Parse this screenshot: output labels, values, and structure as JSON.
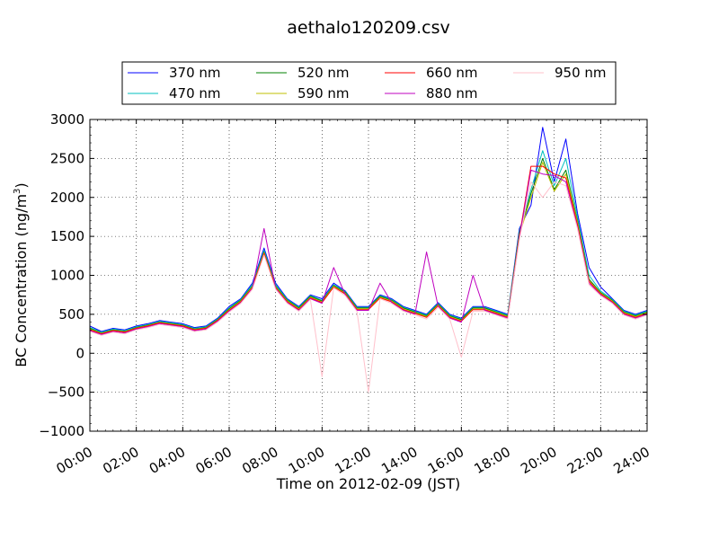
{
  "chart_data": {
    "type": "line",
    "title": "aethalo120209.csv",
    "xlabel": "Time on 2012-02-09 (JST)",
    "ylabel_main": "BC Concentration (ng/m",
    "ylabel_sup": "3",
    "ylabel_end": ")",
    "ylim": [
      -1000,
      3000
    ],
    "xlim_hours": [
      0,
      24
    ],
    "grid": true,
    "legend_position": "top-center",
    "yticks": [
      -1000,
      -500,
      0,
      500,
      1000,
      1500,
      2000,
      2500,
      3000
    ],
    "ytick_labels": [
      "−1000",
      "−500",
      "0",
      "500",
      "1000",
      "1500",
      "2000",
      "2500",
      "3000"
    ],
    "xtick_labels": [
      "00:00",
      "02:00",
      "04:00",
      "06:00",
      "08:00",
      "10:00",
      "12:00",
      "14:00",
      "16:00",
      "18:00",
      "20:00",
      "22:00",
      "24:00"
    ],
    "x_hours": [
      0,
      0.5,
      1,
      1.5,
      2,
      2.5,
      3,
      3.5,
      4,
      4.5,
      5,
      5.5,
      6,
      6.5,
      7,
      7.5,
      8,
      8.5,
      9,
      9.5,
      10,
      10.5,
      11,
      11.5,
      12,
      12.5,
      13,
      13.5,
      14,
      14.5,
      15,
      15.5,
      16,
      16.5,
      17,
      17.5,
      18,
      18.5,
      19,
      19.5,
      20,
      20.5,
      21,
      21.5,
      22,
      22.5,
      23,
      23.5,
      24
    ],
    "series": [
      {
        "name": "370 nm",
        "color": "#0000ff",
        "values": [
          350,
          280,
          320,
          300,
          350,
          380,
          420,
          400,
          380,
          330,
          350,
          450,
          600,
          700,
          900,
          1350,
          900,
          700,
          600,
          750,
          700,
          900,
          800,
          600,
          600,
          750,
          700,
          600,
          550,
          500,
          650,
          500,
          450,
          600,
          600,
          550,
          500,
          1600,
          1900,
          2900,
          2200,
          2750,
          1800,
          1100,
          850,
          700,
          550,
          500,
          550
        ]
      },
      {
        "name": "470 nm",
        "color": "#00bfbf",
        "values": [
          330,
          270,
          310,
          290,
          340,
          370,
          410,
          390,
          370,
          320,
          340,
          440,
          580,
          690,
          880,
          1320,
          880,
          690,
          590,
          740,
          680,
          880,
          790,
          590,
          590,
          740,
          690,
          590,
          540,
          490,
          640,
          490,
          440,
          590,
          590,
          540,
          490,
          1560,
          2100,
          2600,
          2150,
          2500,
          1750,
          1000,
          800,
          690,
          540,
          490,
          540
        ]
      },
      {
        "name": "520 nm",
        "color": "#008000",
        "values": [
          320,
          260,
          300,
          280,
          330,
          360,
          400,
          380,
          360,
          310,
          330,
          430,
          570,
          680,
          860,
          1300,
          860,
          680,
          580,
          730,
          670,
          870,
          780,
          580,
          580,
          730,
          680,
          580,
          530,
          480,
          630,
          480,
          430,
          580,
          580,
          530,
          480,
          1540,
          2050,
          2500,
          2100,
          2350,
          1700,
          950,
          780,
          680,
          530,
          480,
          530
        ]
      },
      {
        "name": "590 nm",
        "color": "#bfbf00",
        "values": [
          310,
          255,
          295,
          275,
          325,
          355,
          395,
          375,
          355,
          305,
          325,
          425,
          560,
          670,
          850,
          1290,
          850,
          670,
          570,
          720,
          660,
          860,
          770,
          570,
          570,
          720,
          670,
          570,
          520,
          470,
          620,
          470,
          420,
          570,
          570,
          520,
          470,
          1520,
          2000,
          2450,
          2080,
          2300,
          1680,
          930,
          770,
          670,
          520,
          470,
          520
        ]
      },
      {
        "name": "660 nm",
        "color": "#ff0000",
        "values": [
          300,
          250,
          290,
          270,
          320,
          350,
          390,
          370,
          350,
          300,
          320,
          420,
          550,
          660,
          840,
          1280,
          840,
          660,
          560,
          710,
          650,
          850,
          760,
          560,
          560,
          710,
          660,
          560,
          510,
          460,
          610,
          460,
          410,
          560,
          560,
          510,
          460,
          1500,
          2400,
          2400,
          2300,
          2250,
          1650,
          920,
          760,
          660,
          510,
          460,
          510
        ]
      },
      {
        "name": "880 nm",
        "color": "#bf00bf",
        "values": [
          290,
          240,
          280,
          260,
          310,
          340,
          380,
          360,
          340,
          290,
          310,
          410,
          540,
          650,
          830,
          1600,
          830,
          650,
          550,
          700,
          640,
          1100,
          750,
          550,
          550,
          900,
          650,
          550,
          500,
          1300,
          600,
          450,
          400,
          1000,
          550,
          500,
          450,
          1480,
          2350,
          2300,
          2280,
          2200,
          1620,
          900,
          750,
          650,
          500,
          450,
          500
        ]
      },
      {
        "name": "950 nm",
        "color": "#ffc0cb",
        "values": [
          280,
          230,
          270,
          250,
          300,
          330,
          370,
          350,
          330,
          280,
          300,
          400,
          530,
          640,
          820,
          1260,
          820,
          640,
          540,
          690,
          -300,
          840,
          740,
          540,
          -500,
          700,
          640,
          540,
          490,
          440,
          590,
          440,
          -50,
          540,
          540,
          490,
          440,
          1460,
          2200,
          2000,
          2200,
          2150,
          1600,
          880,
          740,
          640,
          490,
          440,
          490
        ]
      }
    ]
  }
}
